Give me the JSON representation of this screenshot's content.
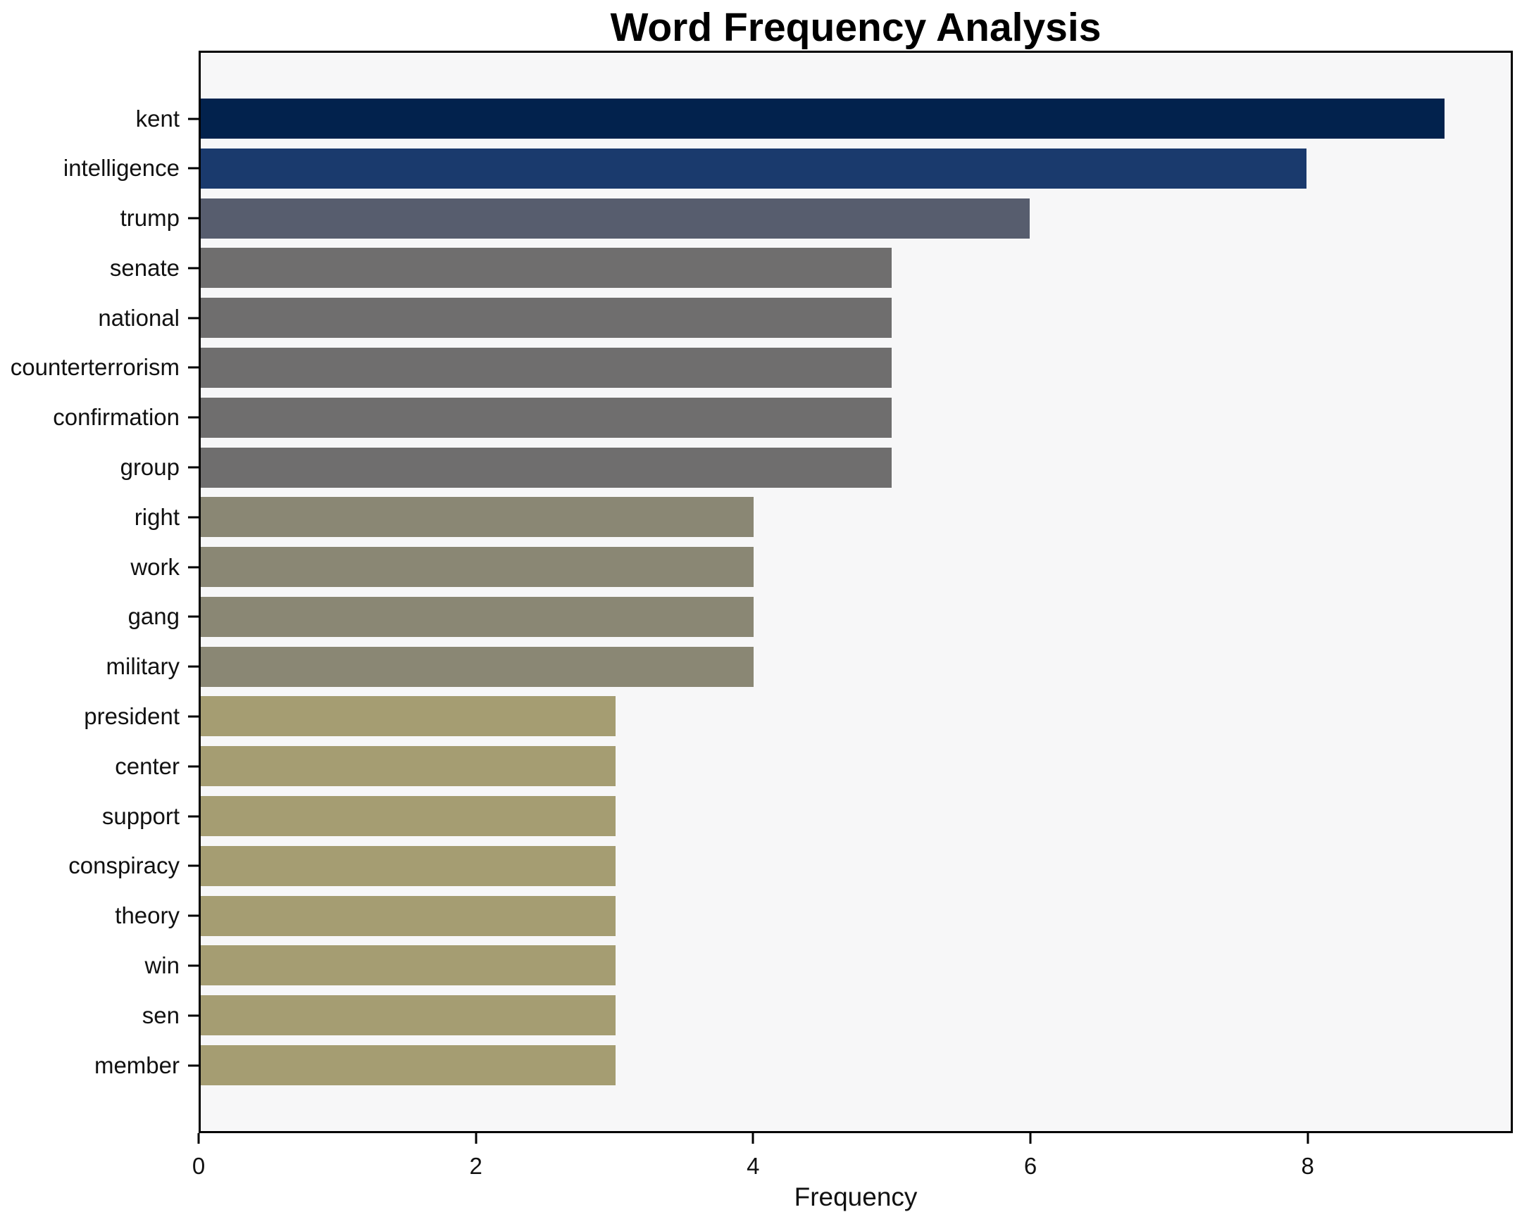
{
  "chart_data": {
    "type": "bar",
    "orientation": "horizontal",
    "title": "Word Frequency Analysis",
    "xlabel": "Frequency",
    "ylabel": "",
    "xlim": [
      0,
      9.48
    ],
    "xticks": [
      "0",
      "2",
      "4",
      "6",
      "8"
    ],
    "xtick_values": [
      0,
      2,
      4,
      6,
      8
    ],
    "grid": false,
    "legend": null,
    "plot_background": "#f7f7f8",
    "figure_background": "#ffffff",
    "spine_color": "#000000",
    "categories": [
      "kent",
      "intelligence",
      "trump",
      "senate",
      "national",
      "counterterrorism",
      "confirmation",
      "group",
      "right",
      "work",
      "gang",
      "military",
      "president",
      "center",
      "support",
      "conspiracy",
      "theory",
      "win",
      "sen",
      "member"
    ],
    "values": [
      9,
      8,
      6,
      5,
      5,
      5,
      5,
      5,
      4,
      4,
      4,
      4,
      3,
      3,
      3,
      3,
      3,
      3,
      3,
      3
    ],
    "bar_colors": [
      "#02224d",
      "#1a3a6d",
      "#575d6e",
      "#6f6e6e",
      "#6f6e6e",
      "#6f6e6e",
      "#6f6e6e",
      "#6f6e6e",
      "#8a8774",
      "#8a8774",
      "#8a8774",
      "#8a8774",
      "#a59d72",
      "#a59d72",
      "#a59d72",
      "#a59d72",
      "#a59d72",
      "#a59d72",
      "#a59d72",
      "#a59d72"
    ]
  }
}
